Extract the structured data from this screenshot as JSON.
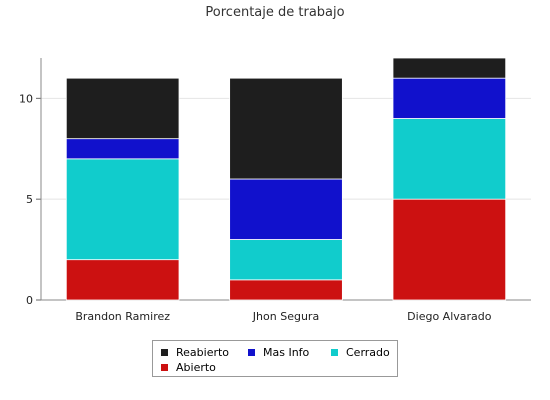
{
  "chart_data": {
    "type": "bar",
    "stacked": true,
    "title": "Porcentaje de trabajo",
    "categories": [
      "Brandon Ramirez",
      "Jhon Segura",
      "Diego Alvarado"
    ],
    "series": [
      {
        "name": "Abierto",
        "color": "#cc1111",
        "values": [
          2,
          1,
          5
        ]
      },
      {
        "name": "Cerrado",
        "color": "#11cccc",
        "values": [
          5,
          2,
          4
        ]
      },
      {
        "name": "Mas Info",
        "color": "#1111cc",
        "values": [
          1,
          3,
          2
        ]
      },
      {
        "name": "Reabierto",
        "color": "#1e1e1e",
        "values": [
          3,
          5,
          1
        ]
      }
    ],
    "yticks": [
      0,
      5,
      10
    ],
    "ylim": [
      0,
      12
    ],
    "grid": true,
    "legend_position": "bottom",
    "legend_order": [
      "Reabierto",
      "Mas Info",
      "Cerrado",
      "Abierto"
    ]
  }
}
